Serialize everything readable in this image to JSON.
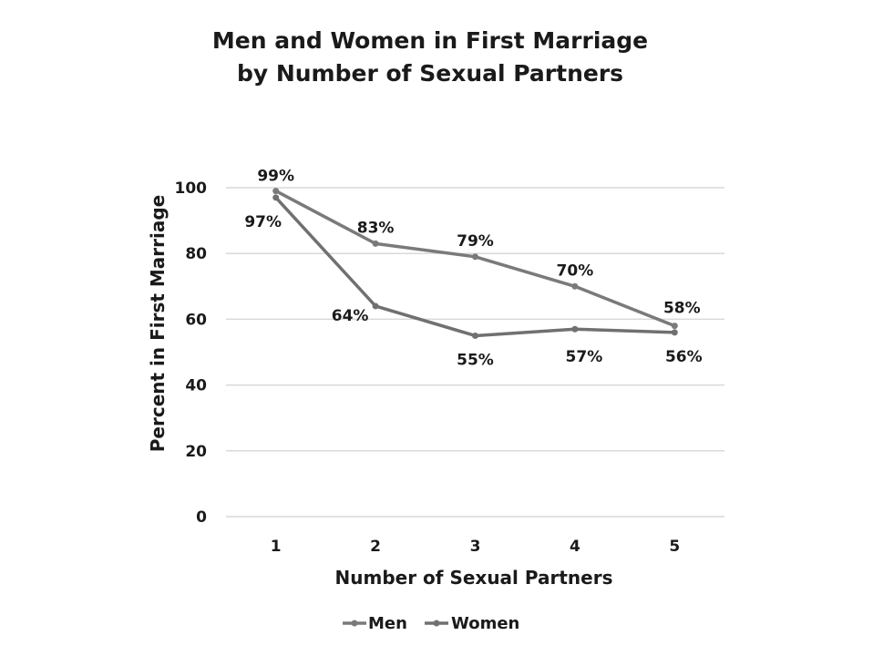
{
  "chart_data": {
    "type": "line",
    "title": [
      "Men and Women in First Marriage",
      "by Number of Sexual Partners"
    ],
    "xlabel": "Number of Sexual Partners",
    "ylabel": "Percent in First Marriage",
    "x": [
      1,
      2,
      3,
      4,
      5
    ],
    "x_tick_labels": [
      "1",
      "2",
      "3",
      "4",
      "5"
    ],
    "ylim": [
      0,
      100
    ],
    "y_ticks": [
      0,
      20,
      40,
      60,
      80,
      100
    ],
    "grid": true,
    "legend_position": "bottom",
    "series": [
      {
        "name": "Men",
        "values": [
          99,
          83,
          79,
          70,
          58
        ],
        "labels": [
          "99%",
          "83%",
          "79%",
          "70%",
          "58%"
        ],
        "color": "#7a7a7a"
      },
      {
        "name": "Women",
        "values": [
          97,
          64,
          55,
          57,
          56
        ],
        "labels": [
          "97%",
          "64%",
          "55%",
          "57%",
          "56%"
        ],
        "color": "#707070"
      }
    ]
  }
}
